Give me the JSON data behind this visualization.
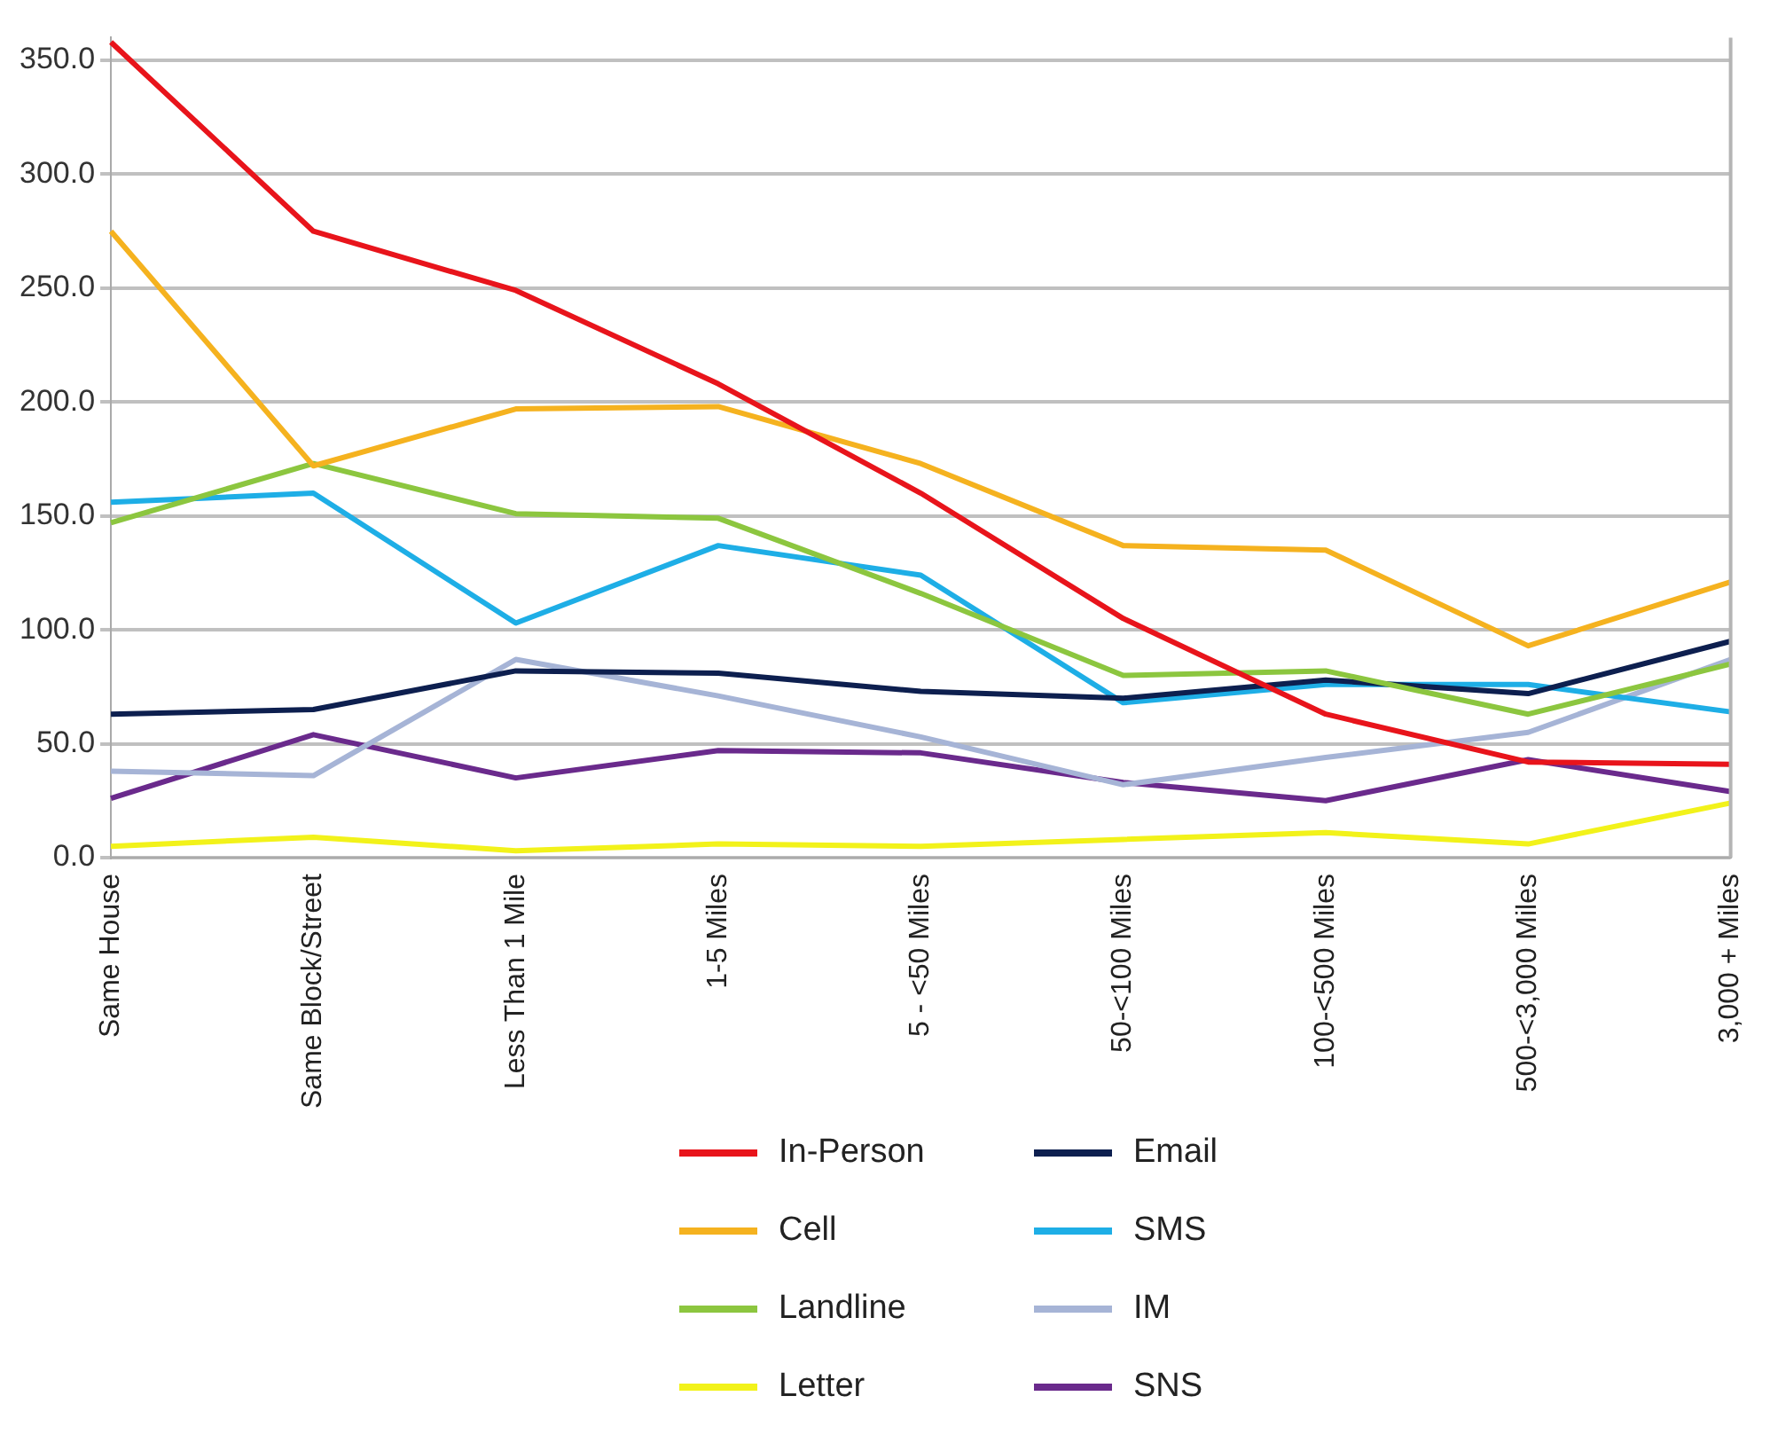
{
  "chart_data": {
    "type": "line",
    "categories": [
      "Same House",
      "Same Block/Street",
      "Less Than 1 Mile",
      "1-5 Miles",
      "5 - <50 Miles",
      "50-<100 Miles",
      "100-<500 Miles",
      "500-<3,000 Miles",
      "3,000 + Miles"
    ],
    "series": [
      {
        "name": "In-Person",
        "color": "#e8141b",
        "values": [
          358,
          275,
          249,
          208,
          160,
          105,
          63,
          42,
          41
        ]
      },
      {
        "name": "Cell",
        "color": "#f5b21f",
        "values": [
          275,
          172,
          197,
          198,
          173,
          137,
          135,
          93,
          121
        ]
      },
      {
        "name": "Landline",
        "color": "#8cc63f",
        "values": [
          147,
          173,
          151,
          149,
          116,
          80,
          82,
          63,
          85
        ]
      },
      {
        "name": "Letter",
        "color": "#f2f21a",
        "values": [
          5,
          9,
          3,
          6,
          5,
          8,
          11,
          6,
          24
        ]
      },
      {
        "name": "Email",
        "color": "#0d1f4f",
        "values": [
          63,
          65,
          82,
          81,
          73,
          70,
          78,
          72,
          95
        ]
      },
      {
        "name": "SMS",
        "color": "#1eaee6",
        "values": [
          156,
          160,
          103,
          137,
          124,
          68,
          76,
          76,
          64
        ]
      },
      {
        "name": "IM",
        "color": "#a6b4d6",
        "values": [
          38,
          36,
          87,
          71,
          53,
          32,
          44,
          55,
          87
        ]
      },
      {
        "name": "SNS",
        "color": "#6a2a8c",
        "values": [
          26,
          54,
          35,
          47,
          46,
          33,
          25,
          43,
          29
        ]
      }
    ],
    "ylim": [
      0,
      360
    ],
    "yticks": [
      {
        "value": 0,
        "label": "0.0"
      },
      {
        "value": 50,
        "label": "50.0"
      },
      {
        "value": 100,
        "label": "100.0"
      },
      {
        "value": 150,
        "label": "150.0"
      },
      {
        "value": 200,
        "label": "200.0"
      },
      {
        "value": 250,
        "label": "250.0"
      },
      {
        "value": 300,
        "label": "300.0"
      },
      {
        "value": 350,
        "label": "350.0"
      }
    ],
    "grid": "y",
    "legend": "bottom",
    "marker": "none",
    "line_style": "solid"
  }
}
